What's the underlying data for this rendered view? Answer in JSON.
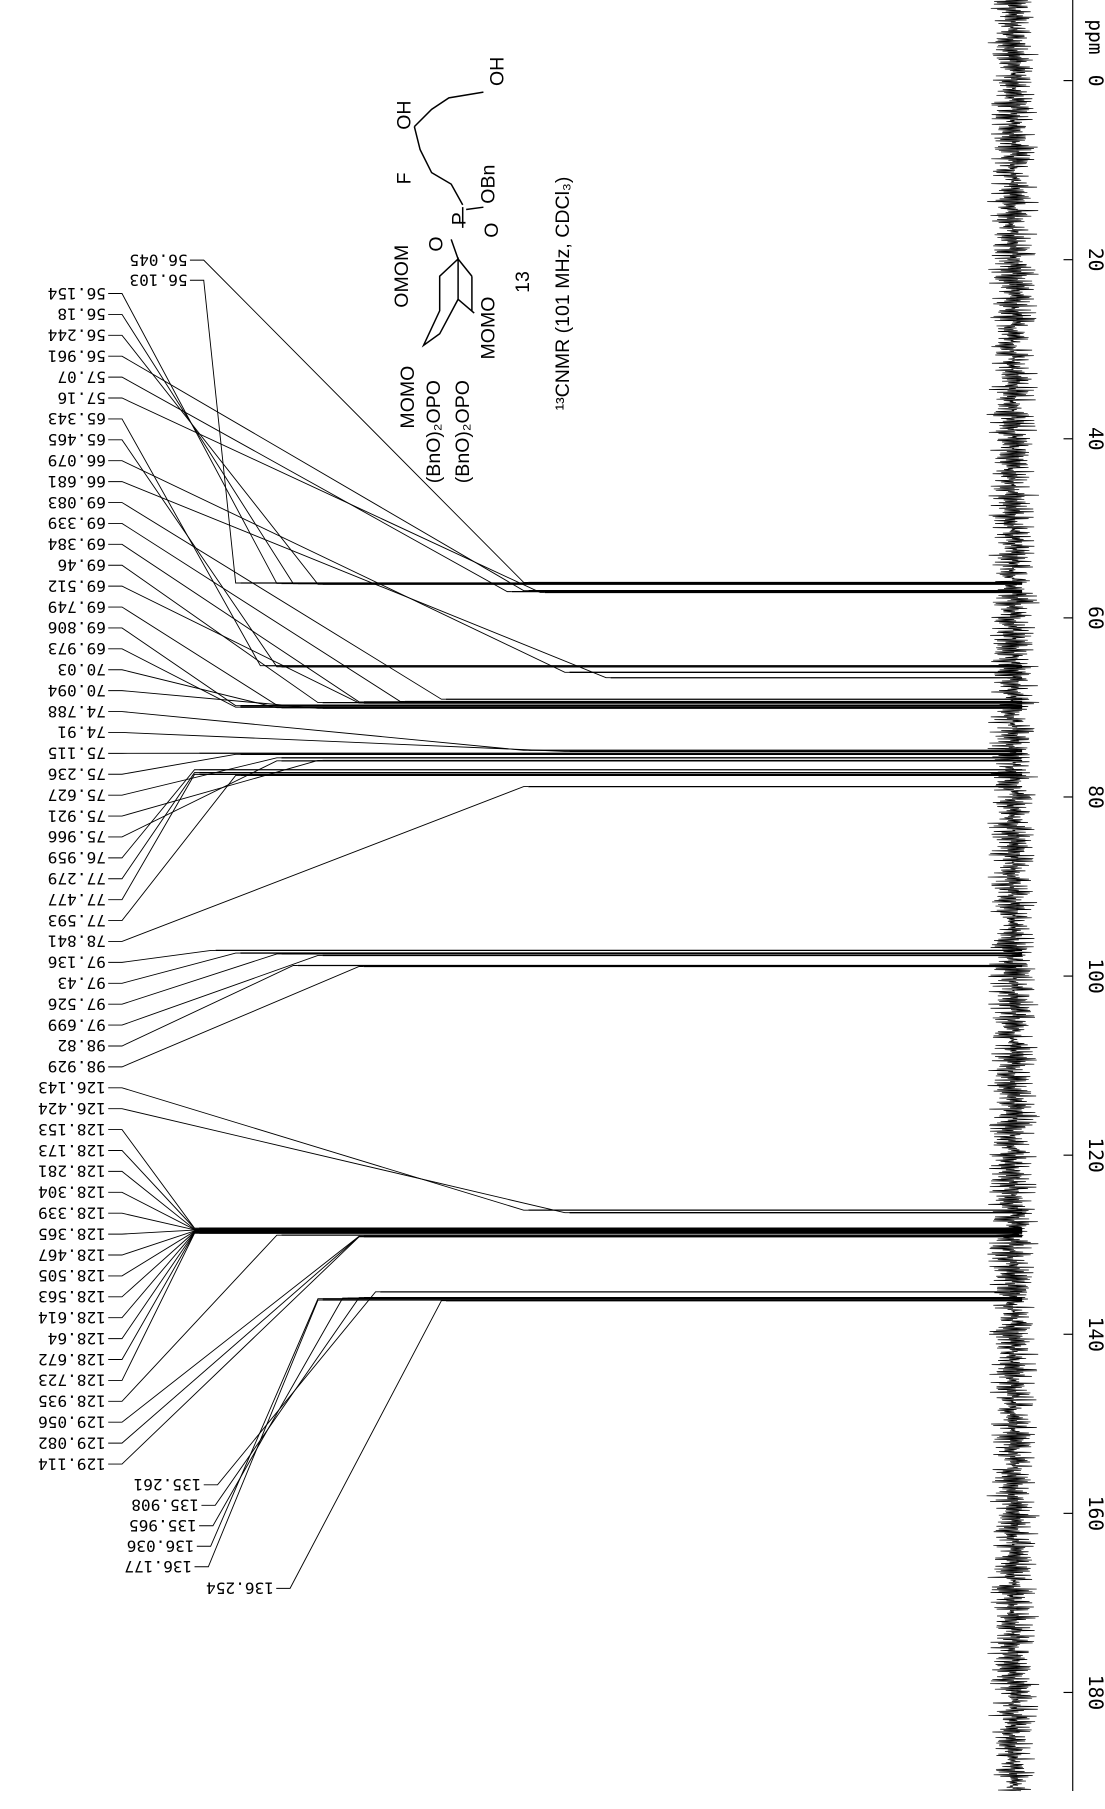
{
  "chart_data": {
    "type": "nmr",
    "x_label": "ppm",
    "xlim": [
      -9,
      191
    ],
    "xticks": [
      0,
      20,
      40,
      60,
      80,
      100,
      120,
      140,
      160,
      180
    ],
    "color": "#000000",
    "x": [
      56.045,
      56.103,
      56.154,
      56.18,
      56.244,
      56.961,
      57.07,
      57.16,
      65.343,
      65.465,
      66.079,
      66.681,
      69.083,
      69.339,
      69.384,
      69.46,
      69.512,
      69.749,
      69.806,
      69.973,
      70.03,
      70.094,
      74.788,
      74.91,
      75.115,
      75.236,
      75.627,
      75.921,
      75.966,
      76.959,
      77.279,
      77.477,
      77.593,
      78.841,
      97.136,
      97.43,
      97.526,
      97.699,
      98.82,
      98.929,
      126.143,
      126.424,
      128.153,
      128.173,
      128.281,
      128.304,
      128.339,
      128.365,
      128.467,
      128.505,
      128.563,
      128.614,
      128.64,
      128.672,
      128.723,
      128.935,
      129.056,
      129.082,
      129.114,
      135.261,
      135.908,
      135.965,
      136.036,
      136.177,
      136.254
    ],
    "values": [
      60,
      95,
      90,
      88,
      85,
      60,
      62,
      58,
      92,
      90,
      55,
      50,
      70,
      75,
      80,
      85,
      80,
      90,
      95,
      95,
      90,
      85,
      60,
      55,
      100,
      95,
      90,
      85,
      90,
      100,
      100,
      100,
      95,
      60,
      98,
      95,
      90,
      85,
      88,
      80,
      60,
      55,
      100,
      100,
      100,
      100,
      100,
      100,
      100,
      100,
      100,
      100,
      100,
      100,
      100,
      90,
      80,
      80,
      80,
      78,
      80,
      82,
      85,
      85,
      70
    ],
    "annotations": [
      "OH",
      "OH",
      "F",
      "OBn",
      "P",
      "O",
      "O",
      "OMOM",
      "MOMO",
      "(BnO)₂OPO",
      "(BnO)₂OPO",
      "MOMO",
      "13",
      "¹³CNMR (101 MHz, CDCl₃)"
    ]
  }
}
